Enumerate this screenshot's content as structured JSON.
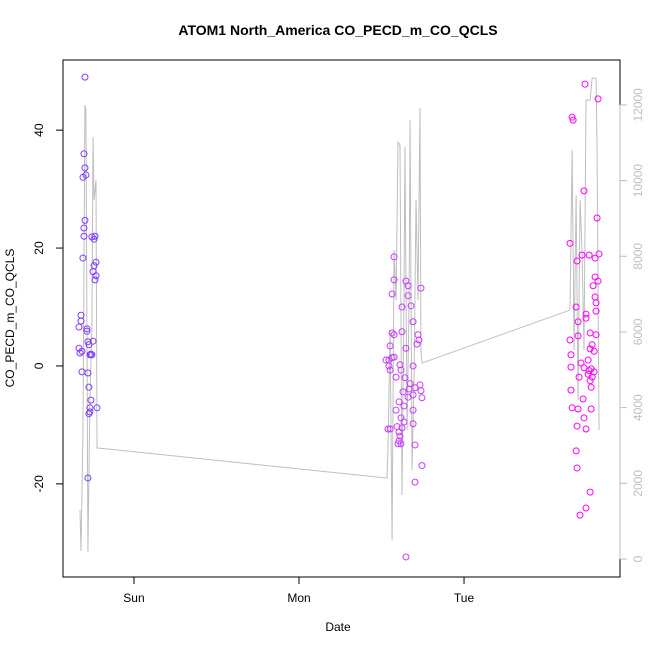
{
  "chart_data": {
    "type": "scatter",
    "title": "ATOM1 North_America CO_PECD_m_CO_QCLS",
    "x_label": "Date",
    "y_label": "CO_PECD_m_CO_QCLS",
    "xlim": [
      -0.43,
      2.945
    ],
    "xticks": [
      {
        "value": 0,
        "label": "Sun"
      },
      {
        "value": 1,
        "label": "Mon"
      },
      {
        "value": 2,
        "label": "Tue"
      }
    ],
    "ylim": [
      -35.8,
      51.9
    ],
    "yticks": [
      -20,
      0,
      20,
      40
    ],
    "y2lim": [
      -475,
      13186
    ],
    "y2ticks": [
      0,
      2000,
      4000,
      6000,
      8000,
      10000,
      12000
    ],
    "y2_color": "#bebebe",
    "series": [
      {
        "color": "#7f3cff",
        "x": [
          -0.297,
          -0.303,
          -0.297,
          -0.291,
          -0.309,
          -0.297,
          -0.303,
          -0.303,
          -0.255,
          -0.236,
          -0.242,
          -0.309,
          -0.23,
          -0.242,
          -0.248,
          -0.23,
          -0.236,
          -0.321,
          -0.321,
          -0.333,
          -0.285,
          -0.285,
          -0.248,
          -0.279,
          -0.273,
          -0.333,
          -0.315,
          -0.327,
          -0.261,
          -0.255,
          -0.267,
          -0.315,
          -0.279,
          -0.273,
          -0.261,
          -0.267,
          -0.224,
          -0.267,
          -0.273,
          -0.279
        ],
        "values": [
          49,
          36,
          33.6,
          32.4,
          32,
          24.7,
          23.4,
          22,
          21.9,
          22,
          21.5,
          18.3,
          17.6,
          17,
          16,
          15.3,
          14.6,
          8.6,
          7.6,
          6.6,
          6.3,
          5.9,
          4.2,
          4.1,
          3.6,
          3,
          2.5,
          2.2,
          2,
          1.9,
          1.9,
          -1,
          -1.2,
          -3.6,
          -5.8,
          -7.1,
          -7.1,
          -7.8,
          -8.1,
          -19
        ]
      },
      {
        "color": "#c83cff",
        "x": [
          1.576,
          1.576,
          1.648,
          1.661,
          1.739,
          1.564,
          1.661,
          1.624,
          1.679,
          1.691,
          1.721,
          1.727,
          1.715,
          1.648,
          1.564,
          1.576,
          1.624,
          1.552,
          1.545,
          1.564,
          1.576,
          1.527,
          1.545,
          1.552,
          1.588,
          1.612,
          1.618,
          1.691,
          1.642,
          1.673,
          1.667,
          1.733,
          1.739,
          1.703,
          1.63,
          1.661,
          1.691,
          1.745,
          1.606,
          1.636,
          1.588,
          1.691,
          1.618,
          1.636,
          1.691,
          1.594,
          1.552,
          1.539,
          1.624,
          1.606,
          1.612,
          1.606,
          1.618,
          1.6,
          1.703,
          1.745,
          1.703,
          1.648
        ],
        "values": [
          18.5,
          14.6,
          14.4,
          13.6,
          13.2,
          12.2,
          11.9,
          10,
          10.2,
          7.5,
          5.3,
          4.4,
          3.7,
          3,
          5.6,
          5.3,
          5.8,
          3.4,
          1,
          1.4,
          1.5,
          1,
          0,
          -0.7,
          -1.9,
          0.2,
          -0.7,
          0,
          -2,
          -3,
          -3.9,
          -3.2,
          -4.2,
          -3.7,
          -4.4,
          -5.3,
          -4.9,
          -5.4,
          -6.1,
          -6.8,
          -7.5,
          -7.5,
          -8.8,
          -9.5,
          -9.8,
          -10.3,
          -10.7,
          -10.7,
          -10.5,
          -11.2,
          -11.9,
          -12.7,
          -13.2,
          -13.2,
          -13.4,
          -16.9,
          -19.7,
          -32.4
        ]
      },
      {
        "color": "#ff00ff",
        "x": [
          2.733,
          2.812,
          2.655,
          2.661,
          2.727,
          2.806,
          2.642,
          2.818,
          2.715,
          2.758,
          2.794,
          2.685,
          2.794,
          2.812,
          2.782,
          2.794,
          2.8,
          2.8,
          2.679,
          2.739,
          2.739,
          2.691,
          2.691,
          2.764,
          2.8,
          2.642,
          2.776,
          2.764,
          2.788,
          2.648,
          2.752,
          2.709,
          2.648,
          2.727,
          2.77,
          2.758,
          2.788,
          2.752,
          2.776,
          2.697,
          2.764,
          2.77,
          2.648,
          2.721,
          2.655,
          2.691,
          2.77,
          2.727,
          2.685,
          2.739,
          2.679,
          2.685,
          2.764,
          2.739,
          2.703
        ],
        "values": [
          47.8,
          45.3,
          42.2,
          41.7,
          29.7,
          25.1,
          20.8,
          19,
          18.8,
          18.8,
          18.3,
          17.8,
          15.1,
          14.4,
          13.6,
          11.7,
          10.7,
          9.3,
          10,
          8.8,
          8.1,
          7.5,
          5.1,
          5.6,
          5.3,
          4.4,
          3.6,
          2.9,
          2.5,
          1.9,
          1,
          0.5,
          -0.2,
          -0.3,
          -0.5,
          -0.8,
          -1,
          -1.4,
          -1.9,
          -1.9,
          -2.5,
          -3.6,
          -4.1,
          -5.6,
          -7.1,
          -7.3,
          -7.3,
          -8.8,
          -10.2,
          -10.7,
          -14.4,
          -17.3,
          -21.4,
          -24.1,
          -25.3
        ]
      },
      {
        "type": "line",
        "axis": "y2",
        "color": "#bebebe",
        "x": [
          -0.327,
          -0.321,
          -0.309,
          -0.297,
          -0.291,
          -0.279,
          -0.267,
          -0.255,
          -0.248,
          -0.242,
          -0.23,
          -0.224,
          -0.218,
          1.533,
          1.539,
          1.552,
          1.564,
          1.576,
          1.588,
          1.6,
          1.612,
          1.624,
          1.636,
          1.642,
          1.655,
          1.667,
          1.673,
          1.685,
          1.697,
          1.709,
          1.721,
          1.733,
          1.739,
          1.745,
          2.642,
          2.655,
          2.667,
          2.679,
          2.691,
          2.703,
          2.715,
          2.727,
          2.739,
          2.764,
          2.776,
          2.8,
          2.806,
          2.818
        ],
        "values": [
          1294,
          211,
          3408,
          11995,
          11862,
          185,
          4200,
          6050,
          11149,
          9485,
          10013,
          2933,
          2933,
          2140,
          2880,
          6050,
          502,
          8164,
          6843,
          11017,
          10938,
          1691,
          6843,
          10885,
          3408,
          6843,
          11598,
          2351,
          4729,
          9485,
          6843,
          11915,
          5522,
          5178,
          6579,
          10806,
          5522,
          9617,
          4200,
          9485,
          8164,
          5522,
          12127,
          12127,
          12708,
          12708,
          10806,
          3408
        ]
      }
    ]
  }
}
